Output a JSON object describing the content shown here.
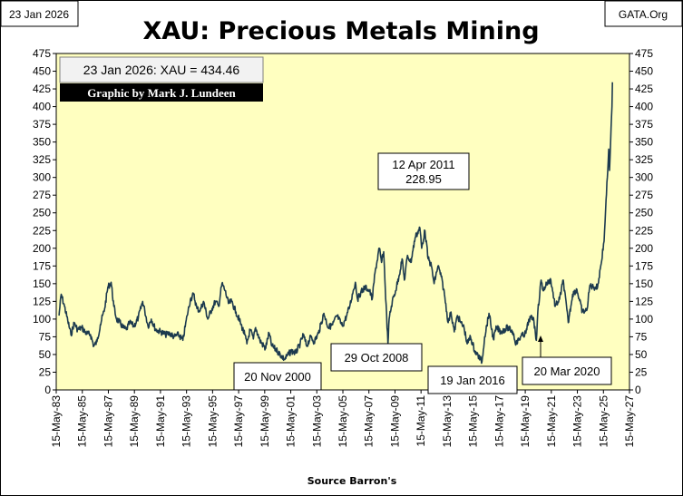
{
  "header": {
    "date_box": "23 Jan 2026",
    "source_box": "GATA.Org"
  },
  "chart_data": {
    "type": "line",
    "title": "XAU: Precious Metals Mining",
    "xlabel": "Source Barron's",
    "ylabel": "",
    "ylim": [
      0,
      475
    ],
    "yticks": [
      0,
      25,
      50,
      75,
      100,
      125,
      150,
      175,
      200,
      225,
      250,
      275,
      300,
      325,
      350,
      375,
      400,
      425,
      450,
      475
    ],
    "xlim": [
      "1983-05-15",
      "2027-05-15"
    ],
    "xtick_labels": [
      "15-May-83",
      "15-May-85",
      "15-May-87",
      "15-May-89",
      "15-May-91",
      "15-May-93",
      "15-May-95",
      "15-May-97",
      "15-May-99",
      "15-May-01",
      "15-May-03",
      "15-May-05",
      "15-May-07",
      "15-May-09",
      "15-May-11",
      "15-May-13",
      "15-May-15",
      "15-May-17",
      "15-May-19",
      "15-May-21",
      "15-May-23",
      "15-May-25",
      "15-May-27"
    ],
    "grid": false,
    "legend": "none",
    "colors": {
      "plot_bg": "#ffffc0",
      "line": "#1c3a4e",
      "badge_bg": "#000000",
      "badge_text": "#ffffff"
    },
    "info_box": "23 Jan 2026: XAU = 434.46",
    "credit_badge": "Graphic by Mark J. Lundeen",
    "annotations": [
      {
        "text": "12 Apr 2011",
        "text2": "228.95",
        "date": "2011-04-12",
        "value": 228.95
      },
      {
        "text": "29 Oct 2008",
        "date": "2008-10-29",
        "value": 65
      },
      {
        "text": "20 Nov 2000",
        "date": "2000-11-20",
        "value": 43
      },
      {
        "text": "19 Jan 2016",
        "date": "2016-01-19",
        "value": 40
      },
      {
        "text": "20 Mar 2020",
        "date": "2020-03-20",
        "value": 70
      }
    ],
    "series": [
      {
        "points": [
          [
            "1983-08-01",
            105
          ],
          [
            "1983-10-01",
            135
          ],
          [
            "1984-01-01",
            118
          ],
          [
            "1984-04-01",
            98
          ],
          [
            "1984-07-01",
            78
          ],
          [
            "1984-10-01",
            95
          ],
          [
            "1985-01-01",
            85
          ],
          [
            "1985-05-01",
            88
          ],
          [
            "1985-09-01",
            80
          ],
          [
            "1986-01-01",
            78
          ],
          [
            "1986-04-01",
            62
          ],
          [
            "1986-07-01",
            68
          ],
          [
            "1986-10-01",
            92
          ],
          [
            "1987-02-01",
            115
          ],
          [
            "1987-05-01",
            145
          ],
          [
            "1987-08-01",
            152
          ],
          [
            "1987-10-15",
            118
          ],
          [
            "1988-01-01",
            100
          ],
          [
            "1988-04-01",
            95
          ],
          [
            "1988-07-01",
            88
          ],
          [
            "1988-10-01",
            85
          ],
          [
            "1989-01-01",
            95
          ],
          [
            "1989-05-01",
            90
          ],
          [
            "1989-09-01",
            102
          ],
          [
            "1990-01-01",
            125
          ],
          [
            "1990-03-01",
            112
          ],
          [
            "1990-06-01",
            90
          ],
          [
            "1990-09-01",
            100
          ],
          [
            "1991-01-01",
            85
          ],
          [
            "1991-06-01",
            82
          ],
          [
            "1991-10-01",
            78
          ],
          [
            "1992-02-01",
            80
          ],
          [
            "1992-06-01",
            75
          ],
          [
            "1992-10-01",
            78
          ],
          [
            "1993-02-01",
            70
          ],
          [
            "1993-06-01",
            105
          ],
          [
            "1993-09-01",
            128
          ],
          [
            "1993-12-01",
            135
          ],
          [
            "1994-03-01",
            115
          ],
          [
            "1994-06-01",
            112
          ],
          [
            "1994-09-01",
            125
          ],
          [
            "1995-01-01",
            100
          ],
          [
            "1995-05-01",
            115
          ],
          [
            "1995-08-01",
            125
          ],
          [
            "1995-11-01",
            118
          ],
          [
            "1996-02-01",
            150
          ],
          [
            "1996-05-01",
            140
          ],
          [
            "1996-08-01",
            122
          ],
          [
            "1996-11-01",
            125
          ],
          [
            "1997-03-01",
            110
          ],
          [
            "1997-07-01",
            95
          ],
          [
            "1997-11-01",
            78
          ],
          [
            "1998-01-01",
            65
          ],
          [
            "1998-04-01",
            85
          ],
          [
            "1998-07-01",
            72
          ],
          [
            "1998-09-01",
            88
          ],
          [
            "1999-01-01",
            70
          ],
          [
            "1999-06-01",
            58
          ],
          [
            "1999-09-15",
            80
          ],
          [
            "1999-12-01",
            62
          ],
          [
            "2000-05-01",
            55
          ],
          [
            "2000-11-20",
            43
          ],
          [
            "2001-02-01",
            48
          ],
          [
            "2001-06-01",
            55
          ],
          [
            "2001-10-01",
            52
          ],
          [
            "2002-02-01",
            65
          ],
          [
            "2002-05-01",
            78
          ],
          [
            "2002-08-01",
            62
          ],
          [
            "2002-12-01",
            75
          ],
          [
            "2003-03-01",
            68
          ],
          [
            "2003-07-01",
            80
          ],
          [
            "2003-12-01",
            108
          ],
          [
            "2004-04-01",
            88
          ],
          [
            "2004-08-01",
            92
          ],
          [
            "2004-12-01",
            105
          ],
          [
            "2005-05-01",
            90
          ],
          [
            "2005-09-01",
            105
          ],
          [
            "2005-12-01",
            120
          ],
          [
            "2006-03-01",
            140
          ],
          [
            "2006-05-01",
            152
          ],
          [
            "2006-07-01",
            128
          ],
          [
            "2006-10-01",
            138
          ],
          [
            "2007-02-01",
            145
          ],
          [
            "2007-06-01",
            140
          ],
          [
            "2007-08-15",
            128
          ],
          [
            "2007-11-01",
            165
          ],
          [
            "2008-03-01",
            200
          ],
          [
            "2008-05-01",
            180
          ],
          [
            "2008-07-01",
            195
          ],
          [
            "2008-08-15",
            145
          ],
          [
            "2008-10-29",
            65
          ],
          [
            "2008-12-01",
            100
          ],
          [
            "2009-03-01",
            125
          ],
          [
            "2009-06-01",
            140
          ],
          [
            "2009-09-01",
            160
          ],
          [
            "2009-12-01",
            185
          ],
          [
            "2010-02-01",
            155
          ],
          [
            "2010-05-01",
            190
          ],
          [
            "2010-08-01",
            180
          ],
          [
            "2010-12-01",
            215
          ],
          [
            "2011-04-12",
            228.95
          ],
          [
            "2011-06-01",
            200
          ],
          [
            "2011-09-01",
            225
          ],
          [
            "2011-12-01",
            185
          ],
          [
            "2012-03-01",
            175
          ],
          [
            "2012-05-15",
            150
          ],
          [
            "2012-09-01",
            175
          ],
          [
            "2012-12-01",
            160
          ],
          [
            "2013-03-01",
            135
          ],
          [
            "2013-06-15",
            95
          ],
          [
            "2013-09-01",
            110
          ],
          [
            "2013-12-01",
            82
          ],
          [
            "2014-03-01",
            105
          ],
          [
            "2014-06-01",
            95
          ],
          [
            "2014-09-01",
            88
          ],
          [
            "2014-12-01",
            65
          ],
          [
            "2015-03-01",
            75
          ],
          [
            "2015-07-01",
            55
          ],
          [
            "2016-01-19",
            40
          ],
          [
            "2016-04-01",
            75
          ],
          [
            "2016-08-01",
            108
          ],
          [
            "2016-12-01",
            72
          ],
          [
            "2017-03-01",
            88
          ],
          [
            "2017-07-01",
            82
          ],
          [
            "2018-01-01",
            88
          ],
          [
            "2018-06-01",
            82
          ],
          [
            "2018-09-01",
            65
          ],
          [
            "2019-01-01",
            75
          ],
          [
            "2019-06-01",
            80
          ],
          [
            "2019-09-01",
            100
          ],
          [
            "2020-01-01",
            102
          ],
          [
            "2020-03-20",
            70
          ],
          [
            "2020-05-01",
            110
          ],
          [
            "2020-08-01",
            155
          ],
          [
            "2020-10-01",
            140
          ],
          [
            "2021-01-01",
            150
          ],
          [
            "2021-05-01",
            155
          ],
          [
            "2021-09-01",
            118
          ],
          [
            "2022-01-01",
            128
          ],
          [
            "2022-04-15",
            155
          ],
          [
            "2022-09-01",
            95
          ],
          [
            "2023-01-01",
            135
          ],
          [
            "2023-05-01",
            142
          ],
          [
            "2023-10-01",
            110
          ],
          [
            "2024-02-01",
            112
          ],
          [
            "2024-05-01",
            148
          ],
          [
            "2024-08-01",
            145
          ],
          [
            "2024-12-01",
            145
          ],
          [
            "2025-03-01",
            175
          ],
          [
            "2025-06-01",
            210
          ],
          [
            "2025-07-15",
            255
          ],
          [
            "2025-09-01",
            300
          ],
          [
            "2025-10-10",
            340
          ],
          [
            "2025-11-01",
            310
          ],
          [
            "2025-12-01",
            350
          ],
          [
            "2026-01-10",
            400
          ],
          [
            "2026-01-23",
            434.46
          ]
        ]
      }
    ]
  }
}
